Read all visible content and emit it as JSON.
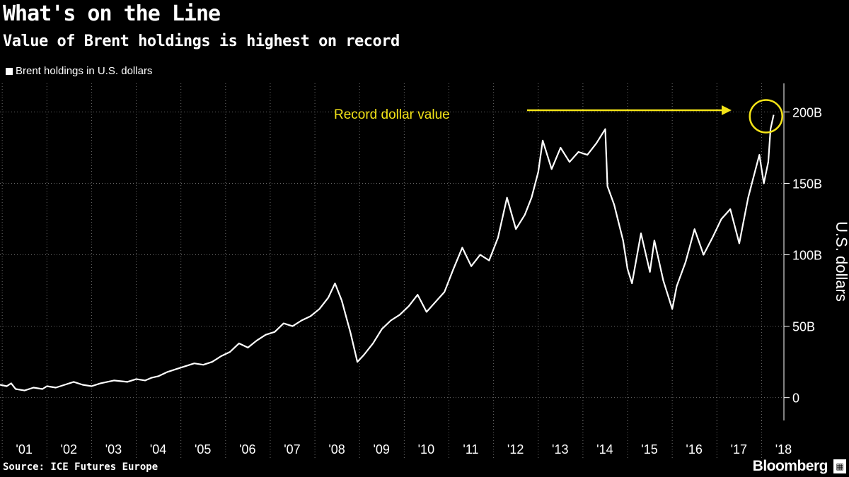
{
  "header": {
    "title": "What's on the Line",
    "subtitle": "Value of Brent holdings is highest on record"
  },
  "legend": {
    "label": "Brent holdings in U.S. dollars"
  },
  "footer": {
    "source": "Source: ICE Futures Europe",
    "brand": "Bloomberg"
  },
  "colors": {
    "background": "#000000",
    "line": "#ffffff",
    "annotation": "#f3e317",
    "grid": "#6a6a6a"
  },
  "chart_data": {
    "type": "line",
    "title": "What's on the Line",
    "subtitle": "Value of Brent holdings is highest on record",
    "xlabel": "",
    "ylabel": "U.S. dollars",
    "ylim": [
      -16,
      220
    ],
    "xlim": [
      2000.95,
      2018.5
    ],
    "y_ticks": [
      0,
      50,
      100,
      150,
      200
    ],
    "y_tick_labels": [
      "0",
      "50B",
      "100B",
      "150B",
      "200B"
    ],
    "x_ticks": [
      2001,
      2002,
      2003,
      2004,
      2005,
      2006,
      2007,
      2008,
      2009,
      2010,
      2011,
      2012,
      2013,
      2014,
      2015,
      2016,
      2017,
      2018
    ],
    "x_tick_labels": [
      "'01",
      "'02",
      "'03",
      "'04",
      "'05",
      "'06",
      "'07",
      "'08",
      "'09",
      "'10",
      "'11",
      "'12",
      "'13",
      "'14",
      "'15",
      "'16",
      "'17",
      "'18"
    ],
    "grid": true,
    "legend": "top-left",
    "annotation": {
      "text": "Record dollar value",
      "x": 2018.1,
      "y": 198
    },
    "series": [
      {
        "name": "Brent holdings in U.S. dollars",
        "x": [
          2000.95,
          2001.1,
          2001.2,
          2001.3,
          2001.5,
          2001.7,
          2001.9,
          2002.0,
          2002.2,
          2002.4,
          2002.6,
          2002.8,
          2003.0,
          2003.2,
          2003.5,
          2003.8,
          2004.0,
          2004.2,
          2004.35,
          2004.5,
          2004.7,
          2004.9,
          2005.1,
          2005.3,
          2005.5,
          2005.7,
          2005.9,
          2006.1,
          2006.3,
          2006.5,
          2006.7,
          2006.9,
          2007.1,
          2007.3,
          2007.5,
          2007.7,
          2007.9,
          2008.1,
          2008.3,
          2008.45,
          2008.6,
          2008.8,
          2008.95,
          2009.1,
          2009.3,
          2009.5,
          2009.7,
          2009.9,
          2010.1,
          2010.3,
          2010.5,
          2010.7,
          2010.9,
          2011.1,
          2011.3,
          2011.5,
          2011.7,
          2011.9,
          2012.1,
          2012.3,
          2012.5,
          2012.7,
          2012.85,
          2013.0,
          2013.1,
          2013.3,
          2013.5,
          2013.7,
          2013.9,
          2014.1,
          2014.3,
          2014.5,
          2014.55,
          2014.7,
          2014.9,
          2015.0,
          2015.1,
          2015.3,
          2015.5,
          2015.6,
          2015.8,
          2016.0,
          2016.1,
          2016.3,
          2016.5,
          2016.7,
          2016.9,
          2017.1,
          2017.3,
          2017.5,
          2017.7,
          2017.8,
          2017.95,
          2018.05,
          2018.15,
          2018.2,
          2018.27
        ],
        "values": [
          9,
          8,
          10,
          6,
          5,
          7,
          6,
          8,
          7,
          9,
          11,
          9,
          8,
          10,
          12,
          11,
          13,
          12,
          14,
          15,
          18,
          20,
          22,
          24,
          23,
          25,
          29,
          32,
          38,
          35,
          40,
          44,
          46,
          52,
          50,
          54,
          57,
          62,
          70,
          80,
          68,
          45,
          25,
          30,
          38,
          48,
          54,
          58,
          64,
          72,
          60,
          67,
          74,
          90,
          105,
          92,
          100,
          96,
          112,
          140,
          118,
          128,
          140,
          158,
          180,
          160,
          175,
          165,
          172,
          170,
          178,
          188,
          148,
          135,
          110,
          90,
          80,
          115,
          88,
          110,
          82,
          62,
          78,
          95,
          118,
          100,
          112,
          125,
          132,
          108,
          140,
          152,
          170,
          150,
          165,
          188,
          198
        ]
      }
    ]
  }
}
